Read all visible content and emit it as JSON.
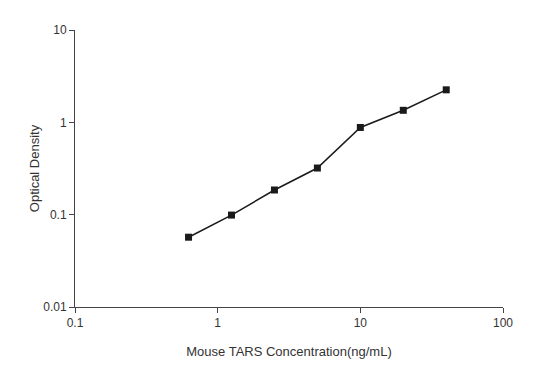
{
  "chart_data": {
    "type": "line",
    "x": [
      0.625,
      1.25,
      2.5,
      5.0,
      10.0,
      20.0,
      40.0
    ],
    "values": [
      0.057,
      0.099,
      0.185,
      0.32,
      0.88,
      1.35,
      2.25
    ],
    "xlabel": "Mouse TARS Concentration(ng/mL)",
    "ylabel": "Optical Density",
    "xlim": [
      0.1,
      100
    ],
    "ylim": [
      0.01,
      10
    ],
    "xticks": [
      0.1,
      1,
      10,
      100
    ],
    "yticks": [
      0.01,
      0.1,
      1,
      10
    ],
    "log": true,
    "grid": false,
    "color": "#1a1a1a",
    "marker": "square",
    "line_style": "solid"
  }
}
